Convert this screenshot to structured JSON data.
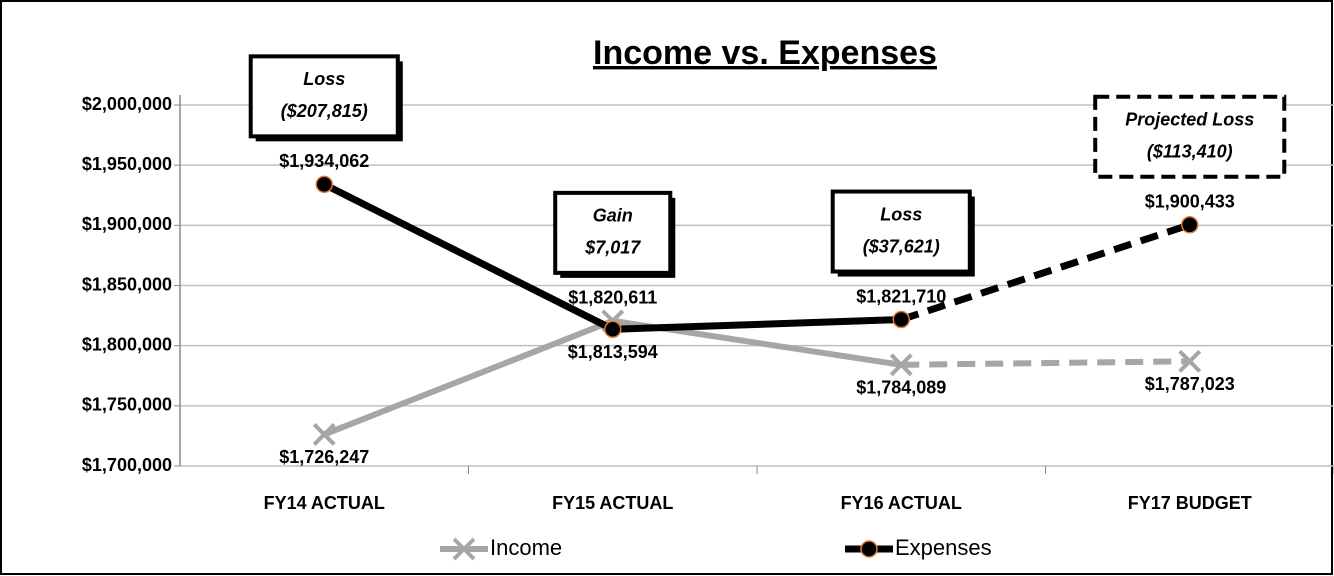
{
  "chart_data": {
    "type": "line",
    "title": "Income vs. Expenses",
    "categories": [
      "FY14 ACTUAL",
      "FY15 ACTUAL",
      "FY16 ACTUAL",
      "FY17 BUDGET"
    ],
    "series": [
      {
        "name": "Income",
        "color": "#a6a6a6",
        "marker": "x",
        "dash_from": 2,
        "values": [
          1726247,
          1820611,
          1784089,
          1787023
        ],
        "value_labels": [
          "$1,726,247",
          "$1,820,611",
          "$1,784,089",
          "$1,787,023"
        ],
        "value_label_position": [
          "below",
          "above",
          "below",
          "below"
        ]
      },
      {
        "name": "Expenses",
        "color": "#000000",
        "marker": "circle",
        "marker_edge": "#e07b39",
        "dash_from": 2,
        "values": [
          1934062,
          1813594,
          1821710,
          1900433
        ],
        "value_labels": [
          "$1,934,062",
          "$1,813,594",
          "$1,821,710",
          "$1,900,433"
        ],
        "value_label_position": [
          "above",
          "below",
          "above",
          "above"
        ]
      }
    ],
    "ylim": [
      1700000,
      2000000
    ],
    "yticks": [
      {
        "value": 1700000,
        "label": "$1,700,000"
      },
      {
        "value": 1750000,
        "label": "$1,750,000"
      },
      {
        "value": 1800000,
        "label": "$1,800,000"
      },
      {
        "value": 1850000,
        "label": "$1,850,000"
      },
      {
        "value": 1900000,
        "label": "$1,900,000"
      },
      {
        "value": 1950000,
        "label": "$1,950,000"
      },
      {
        "value": 2000000,
        "label": "$2,000,000"
      }
    ],
    "grid": true,
    "legend": "bottom",
    "annotations": [
      {
        "category": 0,
        "lines": [
          "Loss",
          "($207,815)"
        ],
        "style": "solid"
      },
      {
        "category": 1,
        "lines": [
          "Gain",
          "$7,017"
        ],
        "style": "solid"
      },
      {
        "category": 2,
        "lines": [
          "Loss",
          "($37,621)"
        ],
        "style": "solid"
      },
      {
        "category": 3,
        "lines": [
          "Projected Loss",
          "($113,410)"
        ],
        "style": "dashed"
      }
    ]
  }
}
